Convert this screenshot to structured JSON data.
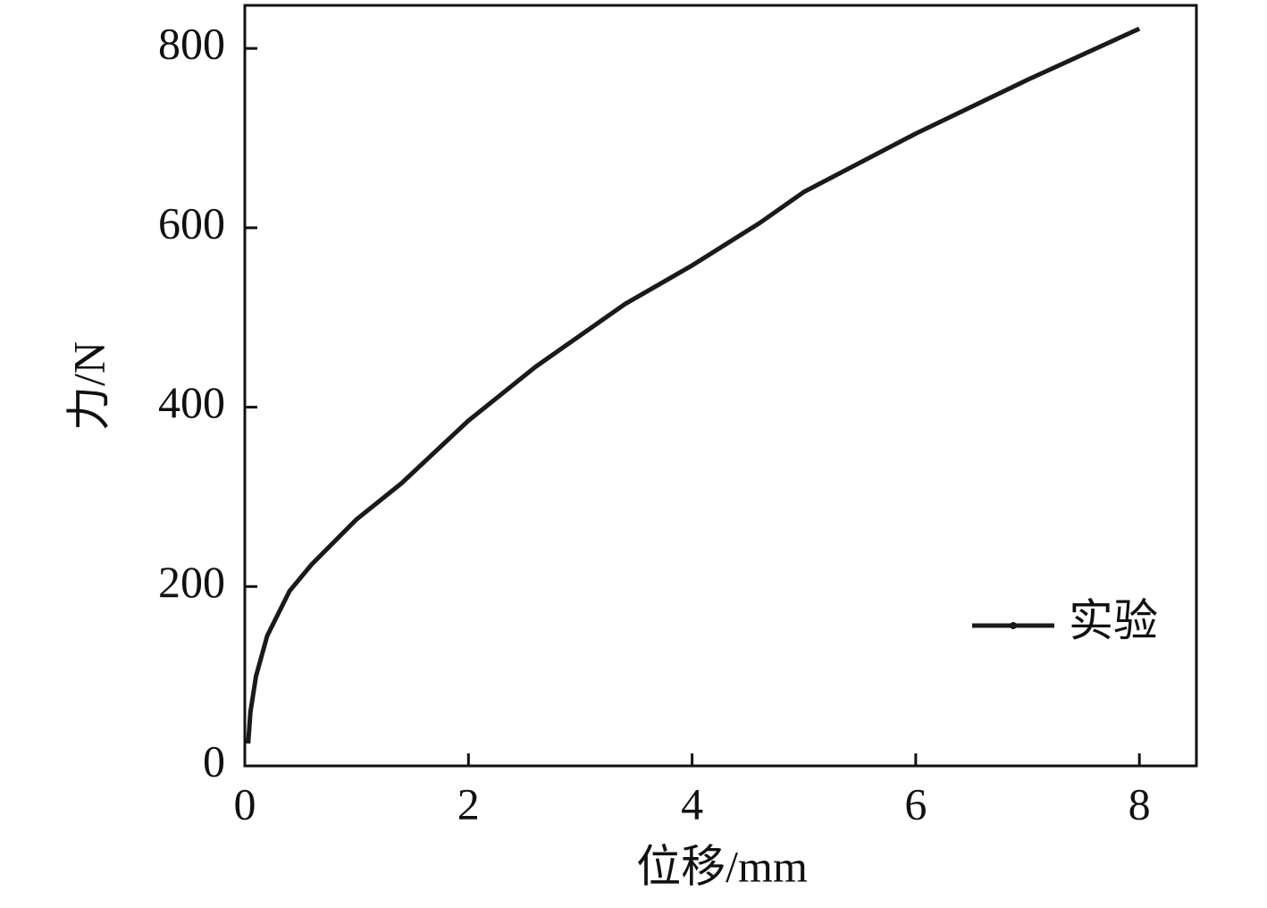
{
  "chart_data": {
    "type": "line",
    "x_label": "位移/mm",
    "y_label": "力/N",
    "x": [
      0.03,
      0.05,
      0.1,
      0.2,
      0.4,
      0.6,
      0.8,
      1.0,
      1.4,
      2,
      2.6,
      3.4,
      4,
      4.6,
      5,
      6,
      7,
      8
    ],
    "series": [
      {
        "name": "实验",
        "color": "#1a1a1a",
        "values": [
          25,
          60,
          100,
          145,
          195,
          225,
          250,
          275,
          315,
          385,
          445,
          515,
          558,
          605,
          640,
          705,
          765,
          822
        ]
      }
    ],
    "xlim": [
      0,
      8.51
    ],
    "ylim": [
      0,
      848
    ],
    "xticks": [
      0,
      2,
      4,
      6,
      8
    ],
    "yticks": [
      0,
      200,
      400,
      600,
      800
    ],
    "legend": "lower right"
  }
}
